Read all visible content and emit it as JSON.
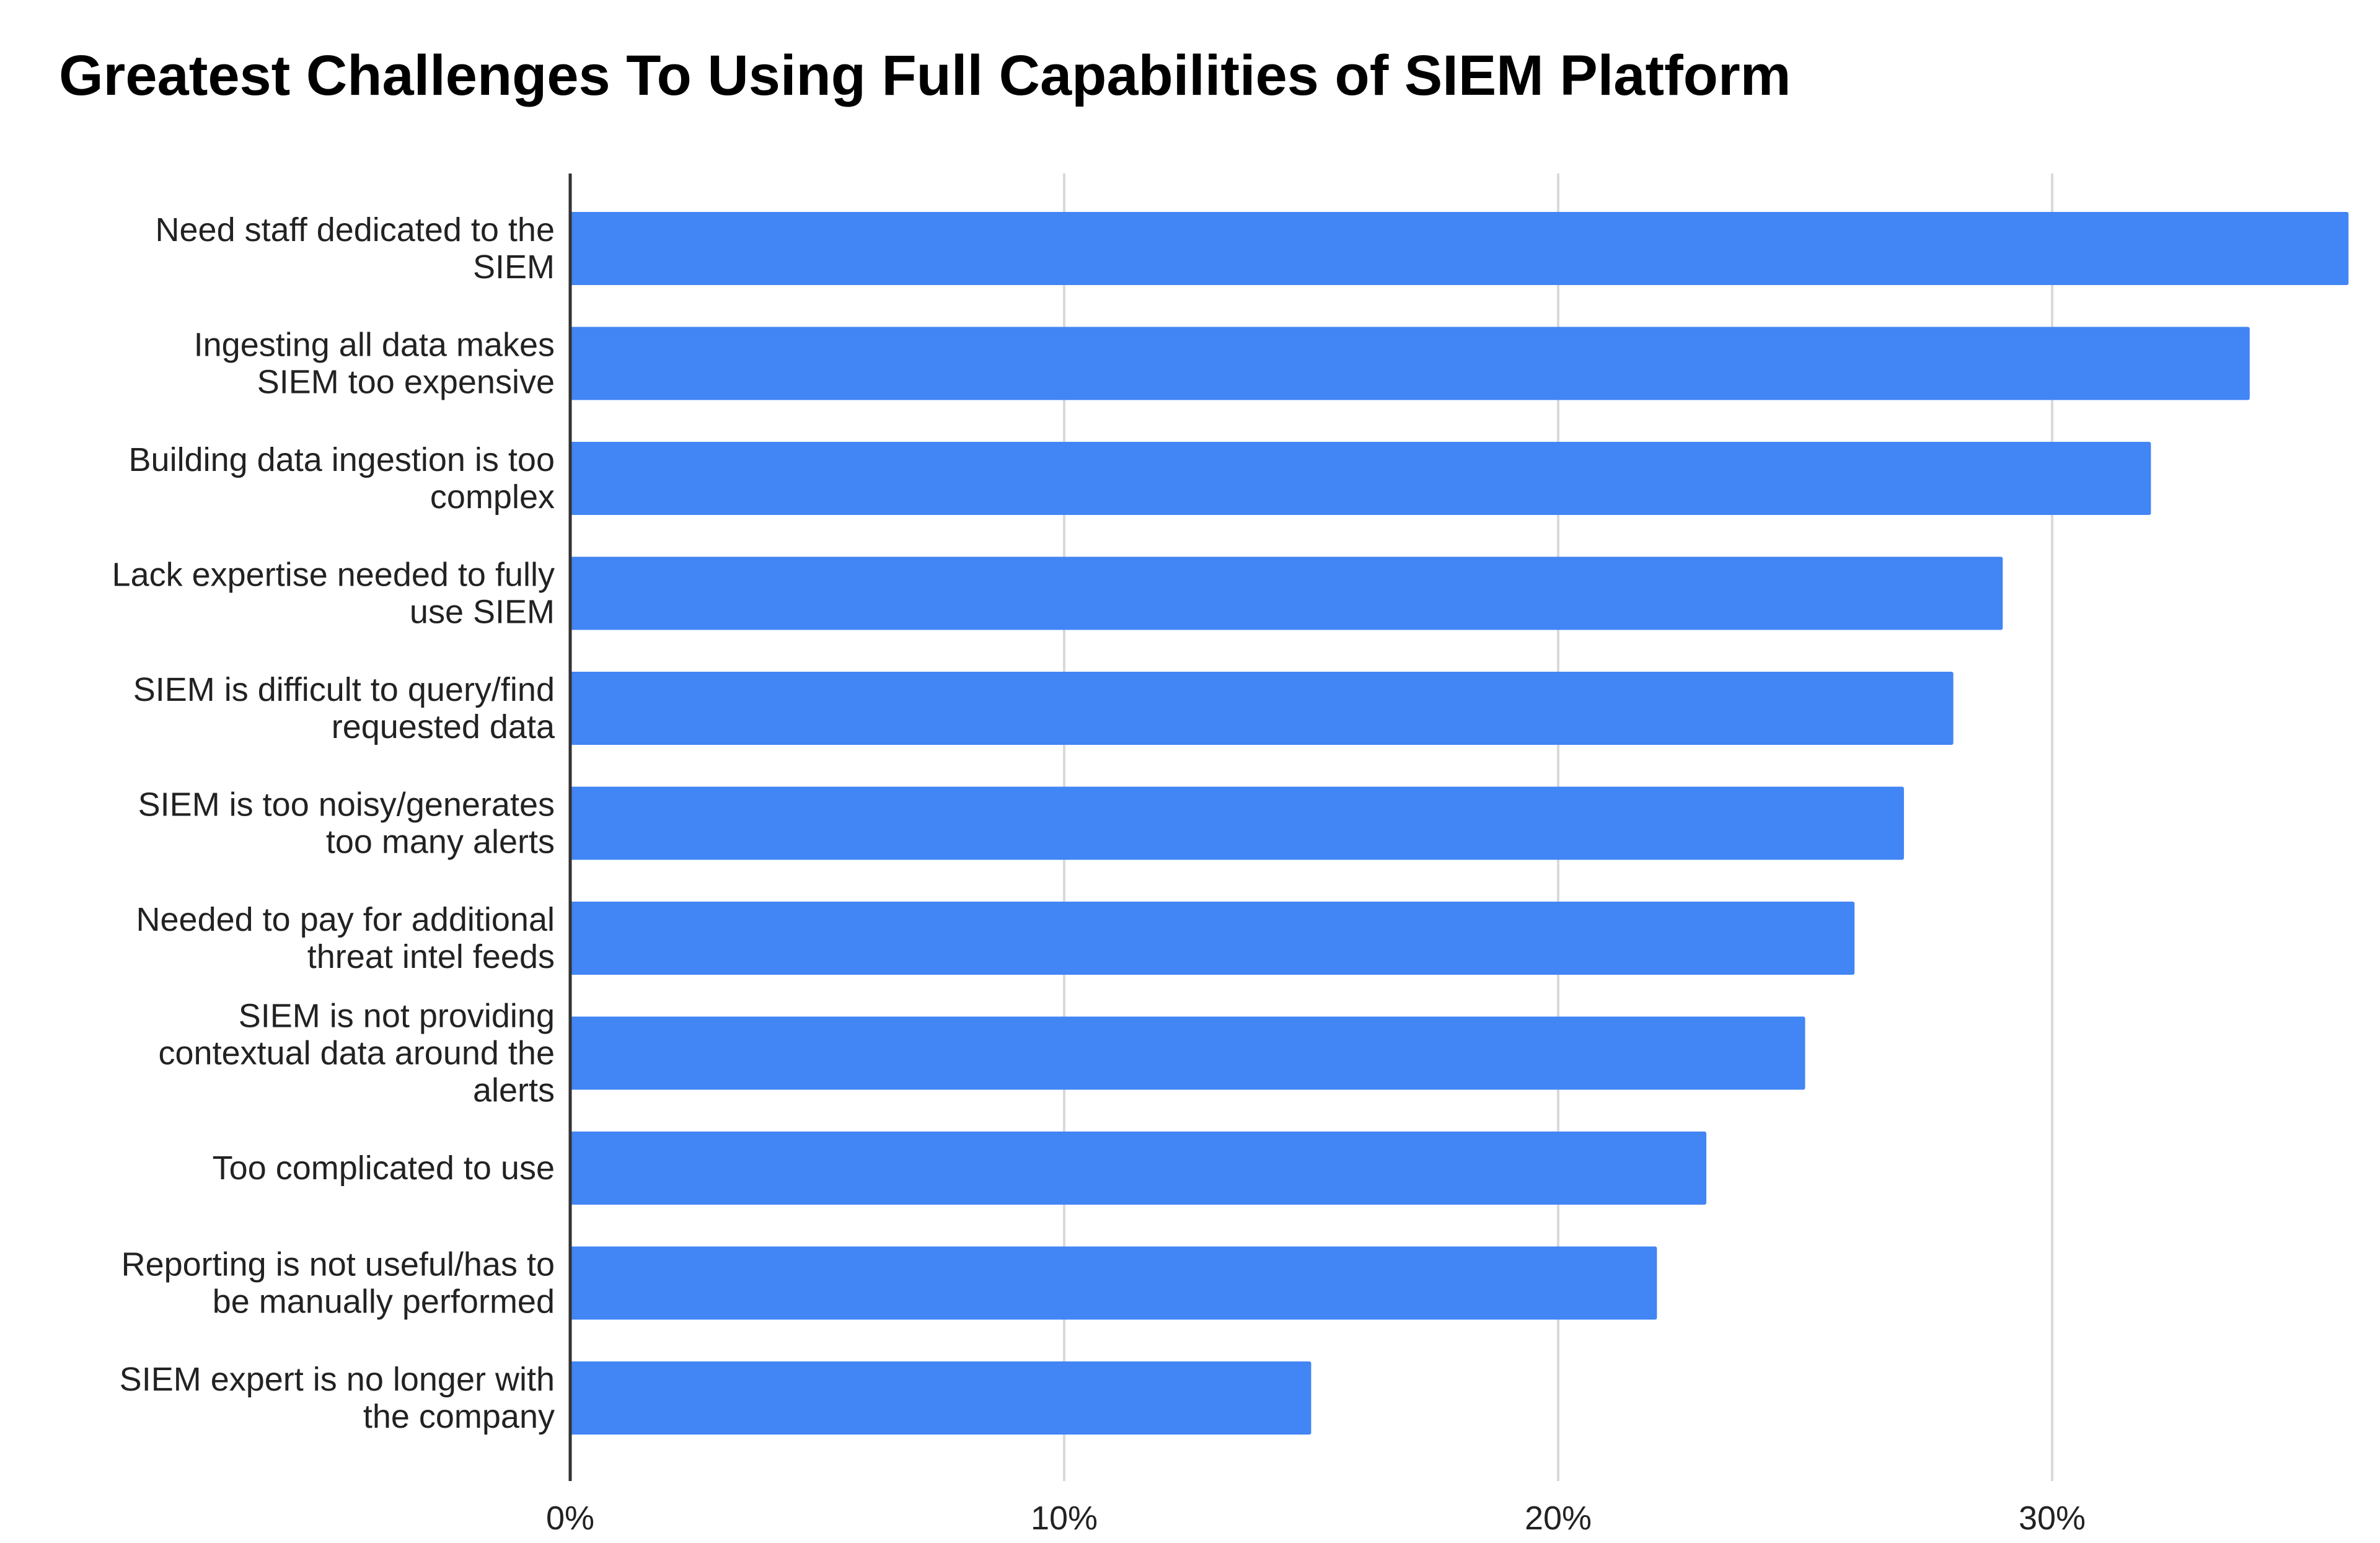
{
  "chart_data": {
    "type": "bar",
    "orientation": "horizontal",
    "title": "Greatest Challenges To Using Full Capabilities of SIEM Platform",
    "xlabel": "",
    "ylabel": "",
    "categories": [
      [
        "Need staff dedicated to the",
        "SIEM"
      ],
      [
        "Ingesting all data makes",
        "SIEM too expensive"
      ],
      [
        "Building data ingestion is too",
        "complex"
      ],
      [
        "Lack expertise needed to fully",
        "use SIEM"
      ],
      [
        "SIEM is difficult to query/find",
        "requested data"
      ],
      [
        "SIEM is too noisy/generates",
        "too many alerts"
      ],
      [
        "Needed to pay for additional",
        "threat intel feeds"
      ],
      [
        "SIEM is not providing",
        "contextual data around the",
        "alerts"
      ],
      [
        "Too complicated to use"
      ],
      [
        "Reporting is not useful/has to",
        "be manually performed"
      ],
      [
        "SIEM expert is no longer with",
        "the company"
      ]
    ],
    "values": [
      36,
      34,
      32,
      29,
      28,
      27,
      26,
      25,
      23,
      22,
      15
    ],
    "xlim": [
      0,
      36
    ],
    "xticks": [
      0,
      10,
      20,
      30
    ],
    "xtick_labels": [
      "0%",
      "10%",
      "20%",
      "30%"
    ],
    "grid": true,
    "legend": "none",
    "bar_color": "#4285f4",
    "grid_color": "#d9d9d9",
    "axis_color": "#333333"
  }
}
